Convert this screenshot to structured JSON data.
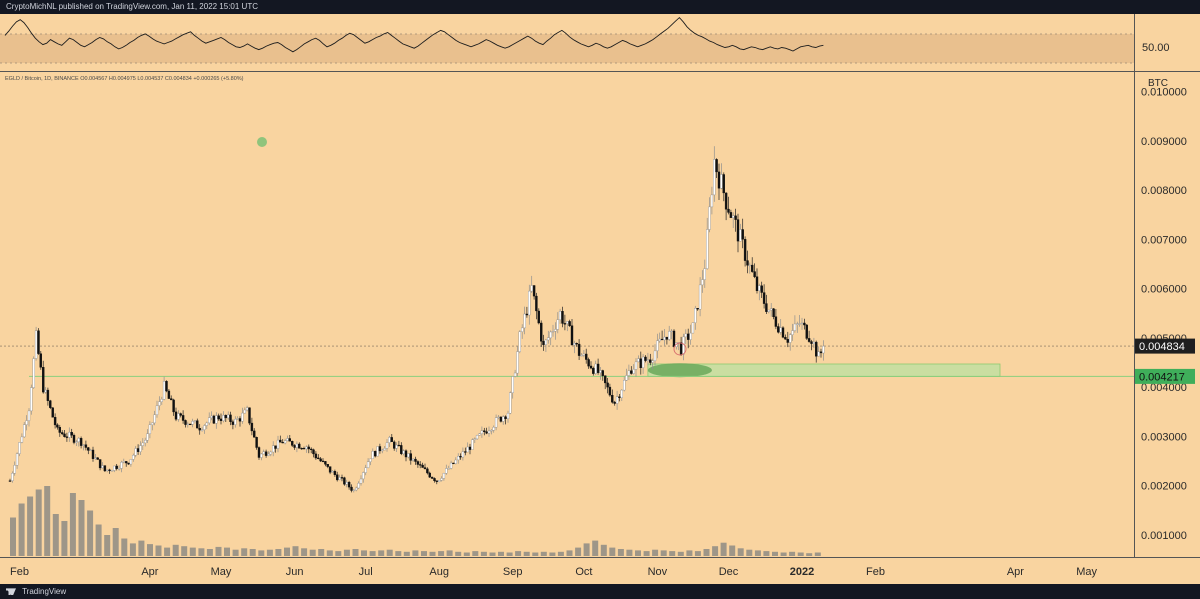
{
  "header": {
    "publisher_line": "CryptoMichNL published on TradingView.com, Jan 11, 2022 15:01 UTC"
  },
  "footer": {
    "brand": "TradingView"
  },
  "chart_data": [
    {
      "type": "line",
      "panel": "oscillator",
      "reference_level": 50,
      "reference_label": "50.00",
      "band": [
        30,
        70
      ],
      "ylim": [
        10,
        90
      ],
      "values": [
        60,
        66,
        73,
        79,
        82,
        78,
        71,
        63,
        56,
        51,
        47,
        49,
        54,
        51,
        48,
        46,
        51,
        56,
        54,
        50,
        46,
        44,
        47,
        50,
        54,
        57,
        55,
        51,
        48,
        44,
        41,
        43,
        46,
        50,
        53,
        57,
        60,
        62,
        59,
        55,
        52,
        50,
        48,
        50,
        52,
        55,
        58,
        61,
        63,
        65,
        60,
        56,
        52,
        49,
        51,
        53,
        55,
        57,
        54,
        50,
        47,
        44,
        43,
        45,
        48,
        45,
        42,
        40,
        42,
        45,
        47,
        49,
        50,
        47,
        43,
        40,
        37,
        40,
        44,
        48,
        51,
        54,
        56,
        53,
        48,
        44,
        46,
        49,
        53,
        56,
        60,
        63,
        61,
        57,
        53,
        49,
        51,
        54,
        57,
        59,
        62,
        64,
        60,
        56,
        52,
        48,
        46,
        44,
        42,
        45,
        49,
        53,
        57,
        61,
        64,
        67,
        65,
        61,
        57,
        53,
        50,
        48,
        46,
        44,
        46,
        48,
        51,
        54,
        52,
        49,
        46,
        44,
        42,
        44,
        47,
        50,
        53,
        56,
        59,
        56,
        52,
        49,
        47,
        52,
        56,
        61,
        64,
        67,
        63,
        58,
        54,
        51,
        48,
        46,
        44,
        46,
        49,
        47,
        44,
        42,
        44,
        47,
        50,
        53,
        51,
        48,
        46,
        44,
        46,
        48,
        51,
        54,
        58,
        62,
        66,
        70,
        75,
        80,
        85,
        79,
        72,
        67,
        63,
        60,
        58,
        55,
        52,
        50,
        47,
        45,
        43,
        44,
        46,
        44,
        41,
        40,
        42,
        44,
        43,
        41,
        40,
        42,
        44,
        42,
        41,
        43,
        42,
        40,
        38,
        41,
        44,
        45,
        46,
        44,
        43,
        45,
        46
      ]
    },
    {
      "type": "candlestick",
      "panel": "price",
      "legend": "EGLD / Bitcoin, 1D, BINANCE  O0.004567  H0.004975  L0.004537  C0.004834  +0.000265 (+5.80%)",
      "unit": "BTC",
      "ylim": [
        0.00055,
        0.0104
      ],
      "y_ticks": [
        "0.010000",
        "0.009000",
        "0.008000",
        "0.007000",
        "0.006000",
        "0.005000",
        "0.004000",
        "0.003000",
        "0.002000",
        "0.001000"
      ],
      "y_tick_values": [
        0.01,
        0.009,
        0.008,
        0.007,
        0.006,
        0.005,
        0.004,
        0.003,
        0.002,
        0.001
      ],
      "x_ticks": [
        "Feb",
        "Apr",
        "May",
        "Jun",
        "Jul",
        "Aug",
        "Sep",
        "Oct",
        "Nov",
        "Dec",
        "2022",
        "Feb",
        "Apr",
        "May"
      ],
      "x_tick_days": [
        0,
        59,
        89,
        120,
        150,
        181,
        212,
        242,
        273,
        303,
        334,
        365,
        424,
        454
      ],
      "x_start": "2021-02-01",
      "x_end": "2022-05-20",
      "last_price": 0.004834,
      "last_price_label": "0.004834",
      "support_level": 0.004217,
      "support_label": "0.004217",
      "support_zone": [
        0.004217,
        0.00447
      ],
      "support_zone_range_days": [
        269,
        435
      ],
      "key_points": [
        {
          "day": 0,
          "price": 0.0021
        },
        {
          "day": 8,
          "price": 0.0036
        },
        {
          "day": 11,
          "price": 0.005
        },
        {
          "day": 14,
          "price": 0.004
        },
        {
          "day": 20,
          "price": 0.0031
        },
        {
          "day": 30,
          "price": 0.0029
        },
        {
          "day": 40,
          "price": 0.0023
        },
        {
          "day": 50,
          "price": 0.0025
        },
        {
          "day": 58,
          "price": 0.003
        },
        {
          "day": 65,
          "price": 0.004
        },
        {
          "day": 70,
          "price": 0.0034
        },
        {
          "day": 80,
          "price": 0.0032
        },
        {
          "day": 88,
          "price": 0.0034
        },
        {
          "day": 95,
          "price": 0.0033
        },
        {
          "day": 100,
          "price": 0.0035
        },
        {
          "day": 105,
          "price": 0.0026
        },
        {
          "day": 115,
          "price": 0.0029
        },
        {
          "day": 125,
          "price": 0.0028
        },
        {
          "day": 135,
          "price": 0.0023
        },
        {
          "day": 145,
          "price": 0.0019
        },
        {
          "day": 152,
          "price": 0.0026
        },
        {
          "day": 160,
          "price": 0.0029
        },
        {
          "day": 170,
          "price": 0.0025
        },
        {
          "day": 180,
          "price": 0.0021
        },
        {
          "day": 190,
          "price": 0.0026
        },
        {
          "day": 200,
          "price": 0.0031
        },
        {
          "day": 210,
          "price": 0.0035
        },
        {
          "day": 215,
          "price": 0.005
        },
        {
          "day": 220,
          "price": 0.006
        },
        {
          "day": 225,
          "price": 0.0048
        },
        {
          "day": 232,
          "price": 0.0055
        },
        {
          "day": 240,
          "price": 0.0047
        },
        {
          "day": 248,
          "price": 0.0043
        },
        {
          "day": 255,
          "price": 0.0037
        },
        {
          "day": 262,
          "price": 0.0044
        },
        {
          "day": 270,
          "price": 0.0046
        },
        {
          "day": 277,
          "price": 0.0051
        },
        {
          "day": 283,
          "price": 0.0048
        },
        {
          "day": 288,
          "price": 0.0052
        },
        {
          "day": 293,
          "price": 0.0065
        },
        {
          "day": 297,
          "price": 0.0086
        },
        {
          "day": 302,
          "price": 0.0078
        },
        {
          "day": 308,
          "price": 0.007
        },
        {
          "day": 315,
          "price": 0.006
        },
        {
          "day": 322,
          "price": 0.0054
        },
        {
          "day": 328,
          "price": 0.005
        },
        {
          "day": 333,
          "price": 0.0053
        },
        {
          "day": 338,
          "price": 0.005
        },
        {
          "day": 341,
          "price": 0.0046
        },
        {
          "day": 343,
          "price": 0.0048
        }
      ]
    },
    {
      "type": "bar",
      "panel": "volume",
      "values": [
        0.55,
        0.75,
        0.85,
        0.95,
        1,
        0.6,
        0.5,
        0.9,
        0.8,
        0.65,
        0.45,
        0.3,
        0.4,
        0.25,
        0.18,
        0.22,
        0.17,
        0.15,
        0.12,
        0.16,
        0.14,
        0.12,
        0.11,
        0.1,
        0.13,
        0.12,
        0.09,
        0.11,
        0.1,
        0.08,
        0.09,
        0.1,
        0.12,
        0.14,
        0.11,
        0.09,
        0.1,
        0.08,
        0.07,
        0.09,
        0.1,
        0.08,
        0.07,
        0.08,
        0.09,
        0.07,
        0.06,
        0.08,
        0.07,
        0.06,
        0.07,
        0.08,
        0.06,
        0.05,
        0.07,
        0.06,
        0.05,
        0.06,
        0.05,
        0.07,
        0.06,
        0.05,
        0.06,
        0.05,
        0.06,
        0.08,
        0.12,
        0.18,
        0.22,
        0.16,
        0.12,
        0.1,
        0.09,
        0.08,
        0.07,
        0.09,
        0.08,
        0.07,
        0.06,
        0.08,
        0.07,
        0.1,
        0.14,
        0.19,
        0.15,
        0.11,
        0.09,
        0.08,
        0.07,
        0.06,
        0.05,
        0.06,
        0.05,
        0.04,
        0.05
      ]
    }
  ]
}
